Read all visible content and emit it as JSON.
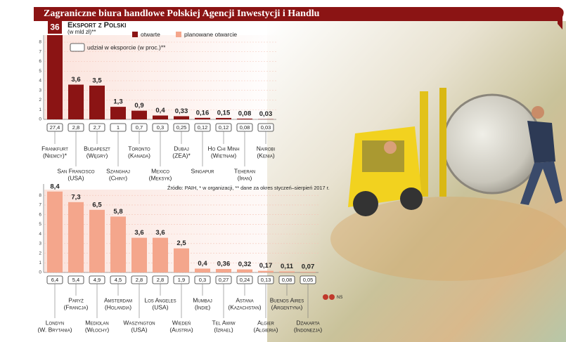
{
  "title": "Zagraniczne biura handlowe Polskiej Agencji Inwestycji i Handlu",
  "source": "Źródło: PAIH, * w organizacji, ** dane za okres styczeń–sierpień 2017 r.",
  "credit": "NS",
  "chart_data": [
    {
      "type": "bar",
      "title": "Eksport z Polski",
      "subtitle": "(w mld zł)**",
      "categories": [
        "Frankfurt",
        "San Francisco",
        "Budapeszt",
        "Szanghaj",
        "Toronto",
        "Mexico",
        "Dubaj",
        "Singapur",
        "Ho Chi Minh",
        "Teheran",
        "Nairobi"
      ],
      "category_sublabels": [
        "(Niemcy)*",
        "(USA)",
        "(Węgry)",
        "(Chiny)",
        "(Kanada)",
        "(Meksyk)",
        "(ZEA)*",
        null,
        "(Wietnam)",
        "(Iran)",
        "(Kenia)"
      ],
      "series": [
        {
          "name": "otwarte",
          "color": "#8b1414",
          "values": [
            36,
            3.6,
            3.5,
            1.3,
            0.9,
            0.4,
            0.33,
            0.16,
            0.15,
            0.08,
            0.03
          ],
          "value_labels": [
            "36",
            "3,6",
            "3,5",
            "1,3",
            "0,9",
            "0,4",
            "0,33",
            "0,16",
            "0,15",
            "0,08",
            "0,03"
          ]
        }
      ],
      "shares": {
        "name": "udział w eksporcie (w proc.)**",
        "values": [
          27.4,
          2.8,
          2.7,
          1,
          0.7,
          0.3,
          0.25,
          0.12,
          0.12,
          0.08,
          0.03
        ],
        "value_labels": [
          "27,4",
          "2,8",
          "2,7",
          "1",
          "0,7",
          "0,3",
          "0,25",
          "0,12",
          "0,12",
          "0,08",
          "0,03"
        ]
      },
      "ylim": [
        0,
        8
      ],
      "yticks": [
        0,
        1,
        2,
        3,
        4,
        5,
        6,
        7,
        8
      ],
      "grid": true
    },
    {
      "type": "bar",
      "categories": [
        "Londyn",
        "Paryż",
        "Mediolan",
        "Amsterdam",
        "Waszyngton",
        "Los Angeles",
        "Wiedeń",
        "Mumbaj",
        "Tel Awiw",
        "Astana",
        "Algier",
        "Buenos Aires",
        "Dżakarta"
      ],
      "category_sublabels": [
        "(W. Brytania)",
        "(Francja)",
        "(Włochy)",
        "(Holandia)",
        "(USA)",
        "(USA)",
        "(Austria)",
        "(Indie)",
        "(Izrael)",
        "(Kazachstan)",
        "(Algieria)",
        "(Argentyna)",
        "(Indonezja)"
      ],
      "series": [
        {
          "name": "planowane otwarcie",
          "color": "#f4a68c",
          "values": [
            8.4,
            7.3,
            6.5,
            5.8,
            3.6,
            3.6,
            2.5,
            0.4,
            0.36,
            0.32,
            0.17,
            0.11,
            0.07
          ],
          "value_labels": [
            "8,4",
            "7,3",
            "6,5",
            "5,8",
            "3,6",
            "3,6",
            "2,5",
            "0,4",
            "0,36",
            "0,32",
            "0,17",
            "0,11",
            "0,07"
          ]
        }
      ],
      "shares": {
        "values": [
          6.4,
          5.4,
          4.9,
          4.5,
          2.8,
          2.8,
          1.9,
          0.3,
          0.27,
          0.24,
          0.13,
          0.08,
          0.05
        ],
        "value_labels": [
          "6,4",
          "5,4",
          "4,9",
          "4,5",
          "2,8",
          "2,8",
          "1,9",
          "0,3",
          "0,27",
          "0,24",
          "0,13",
          "0,08",
          "0,05"
        ]
      },
      "ylim": [
        0,
        8.6
      ],
      "yticks": [
        0,
        1,
        2,
        3,
        4,
        5,
        6,
        7,
        8
      ],
      "grid": true
    }
  ]
}
